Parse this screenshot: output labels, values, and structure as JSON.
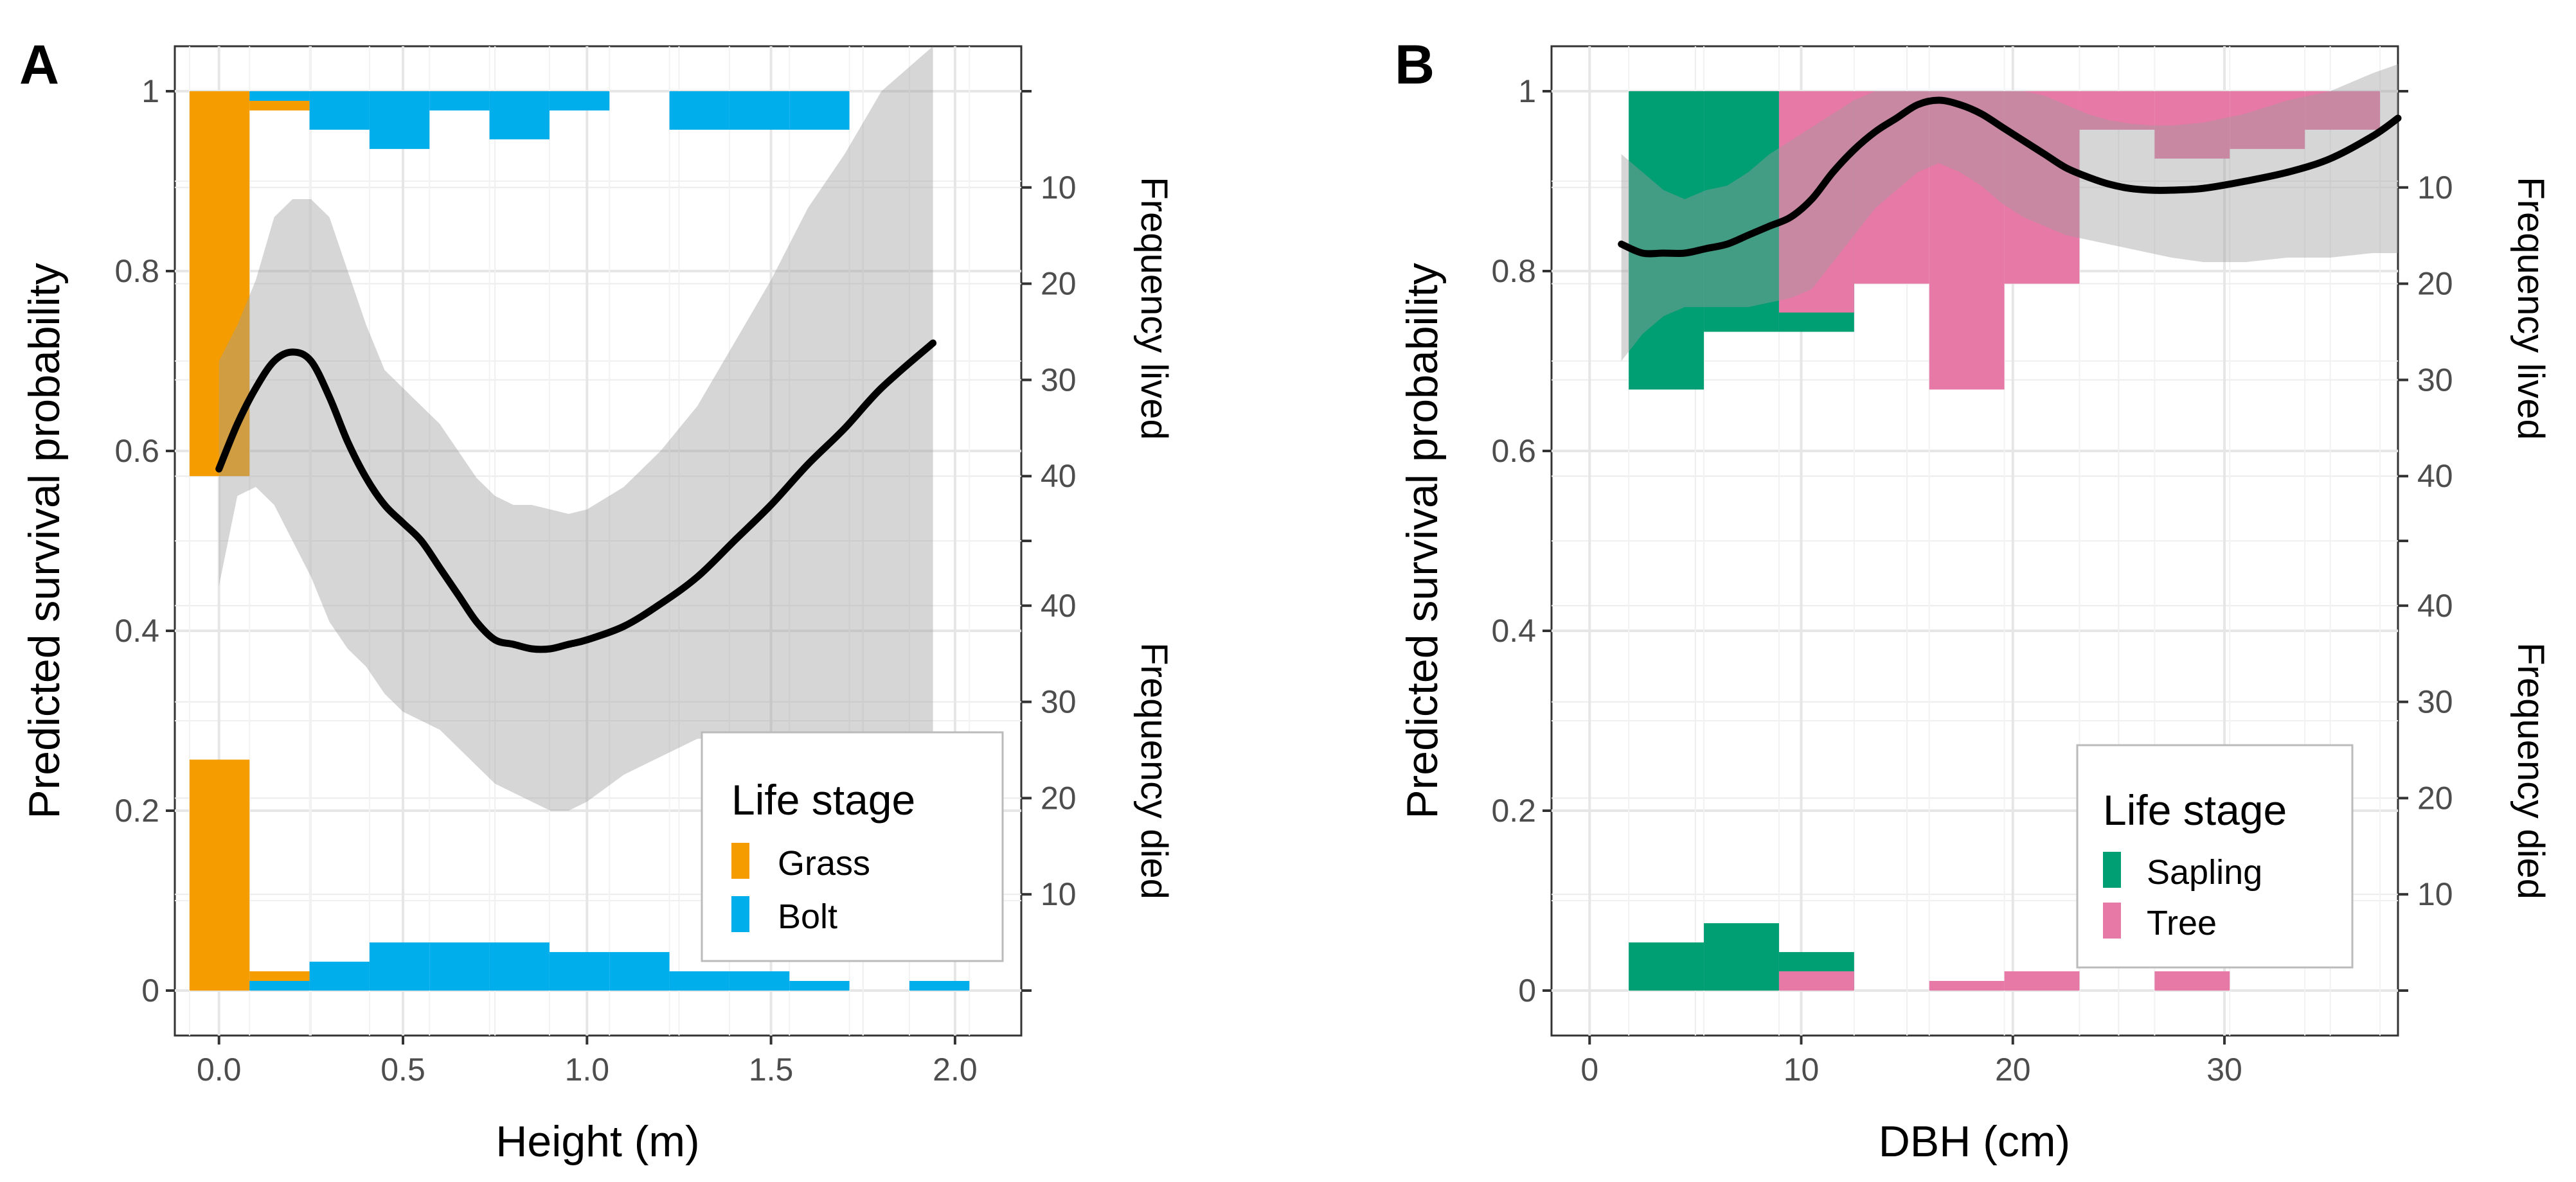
{
  "chart_data": [
    {
      "type": "histogram + logistic fit",
      "panel_label": "A",
      "xlabel": "Height (m)",
      "ylabel": "Predicted survival probability",
      "ylabel_right_top": "Frequency lived",
      "ylabel_right_bottom": "Frequency died",
      "xlim": [
        -0.12,
        2.18
      ],
      "ylim": [
        -0.05,
        1.05
      ],
      "xticks": [
        0.0,
        0.5,
        1.0,
        1.5,
        2.0
      ],
      "xtick_labels": [
        "0.0",
        "0.5",
        "1.0",
        "1.5",
        "2.0"
      ],
      "yticks": [
        0,
        0.2,
        0.4,
        0.6,
        0.8,
        1
      ],
      "ytick_labels": [
        "0",
        "0.2",
        "0.4",
        "0.6",
        "0.8",
        "1"
      ],
      "freq_scale": 0.0107,
      "right_ticks_lived": [
        10,
        20,
        30,
        40
      ],
      "right_ticks_died": [
        10,
        20,
        30,
        40
      ],
      "right_tick_labels_lived": [
        "10",
        "20",
        "30",
        "40"
      ],
      "right_tick_labels_died": [
        "10",
        "20",
        "30",
        "40"
      ],
      "grid": true,
      "legend": {
        "title": "Life stage",
        "position": "bottom-right",
        "items": [
          {
            "label": "Grass",
            "color": "#F59D00"
          },
          {
            "label": "Bolt",
            "color": "#00AEEB"
          }
        ]
      },
      "bin_width": 0.163,
      "series": [
        {
          "name": "Grass",
          "color": "#F59D00",
          "bin_starts": [
            -0.08,
            0.083
          ],
          "lived": [
            40,
            2
          ],
          "died": [
            24,
            2
          ]
        },
        {
          "name": "Bolt",
          "color": "#00AEEB",
          "bin_starts": [
            0.083,
            0.246,
            0.409,
            0.572,
            0.735,
            0.898,
            1.061,
            1.224,
            1.387,
            1.55,
            1.713,
            1.876
          ],
          "lived": [
            1,
            4,
            6,
            2,
            5,
            2,
            0,
            4,
            4,
            4,
            0,
            0
          ],
          "died": [
            1,
            3,
            5,
            5,
            5,
            4,
            4,
            2,
            2,
            1,
            0,
            1
          ]
        }
      ],
      "fit": {
        "x": [
          0.0,
          0.05,
          0.1,
          0.15,
          0.2,
          0.25,
          0.3,
          0.35,
          0.4,
          0.45,
          0.5,
          0.55,
          0.6,
          0.65,
          0.7,
          0.75,
          0.8,
          0.85,
          0.9,
          0.95,
          1.0,
          1.1,
          1.2,
          1.3,
          1.4,
          1.5,
          1.6,
          1.7,
          1.8,
          1.94
        ],
        "y": [
          0.58,
          0.63,
          0.67,
          0.7,
          0.71,
          0.7,
          0.66,
          0.61,
          0.57,
          0.54,
          0.52,
          0.5,
          0.47,
          0.44,
          0.41,
          0.39,
          0.385,
          0.38,
          0.38,
          0.385,
          0.39,
          0.405,
          0.43,
          0.46,
          0.5,
          0.54,
          0.585,
          0.625,
          0.67,
          0.72
        ],
        "lower": [
          0.45,
          0.55,
          0.56,
          0.54,
          0.5,
          0.46,
          0.41,
          0.38,
          0.36,
          0.33,
          0.31,
          0.3,
          0.29,
          0.27,
          0.25,
          0.23,
          0.22,
          0.21,
          0.2,
          0.2,
          0.21,
          0.24,
          0.26,
          0.28,
          0.28,
          0.28,
          0.27,
          0.26,
          0.26,
          0.25
        ],
        "upper": [
          0.7,
          0.74,
          0.79,
          0.86,
          0.88,
          0.88,
          0.86,
          0.8,
          0.74,
          0.69,
          0.67,
          0.65,
          0.63,
          0.6,
          0.57,
          0.55,
          0.54,
          0.54,
          0.535,
          0.53,
          0.535,
          0.56,
          0.6,
          0.65,
          0.72,
          0.79,
          0.87,
          0.93,
          1.0,
          1.05
        ]
      }
    },
    {
      "type": "histogram + logistic fit",
      "panel_label": "B",
      "xlabel": "DBH (cm)",
      "ylabel": "Predicted survival probability",
      "ylabel_right_top": "Frequency lived",
      "ylabel_right_bottom": "Frequency died",
      "xlim": [
        -1.8,
        38.2
      ],
      "ylim": [
        -0.05,
        1.05
      ],
      "xticks": [
        0,
        10,
        20,
        30
      ],
      "xtick_labels": [
        "0",
        "10",
        "20",
        "30"
      ],
      "yticks": [
        0,
        0.2,
        0.4,
        0.6,
        0.8,
        1
      ],
      "ytick_labels": [
        "0",
        "0.2",
        "0.4",
        "0.6",
        "0.8",
        "1"
      ],
      "freq_scale": 0.0107,
      "right_ticks_lived": [
        10,
        20,
        30,
        40
      ],
      "right_ticks_died": [
        10,
        20,
        30,
        40
      ],
      "right_tick_labels_lived": [
        "10",
        "20",
        "30",
        "40"
      ],
      "right_tick_labels_died": [
        "10",
        "20",
        "30",
        "40"
      ],
      "grid": true,
      "legend": {
        "title": "Life stage",
        "position": "bottom-right",
        "items": [
          {
            "label": "Sapling",
            "color": "#009E73"
          },
          {
            "label": "Tree",
            "color": "#E779A6"
          }
        ]
      },
      "bin_width": 3.55,
      "series": [
        {
          "name": "Sapling",
          "color": "#009E73",
          "bin_starts": [
            1.85,
            5.4,
            8.95
          ],
          "lived": [
            31,
            25,
            25
          ],
          "died": [
            5,
            7,
            4
          ]
        },
        {
          "name": "Tree",
          "color": "#E779A6",
          "bin_starts": [
            8.95,
            12.5,
            16.05,
            19.6,
            23.15,
            26.7,
            30.25,
            33.8
          ],
          "lived": [
            23,
            20,
            31,
            20,
            4,
            7,
            6,
            4
          ],
          "died": [
            2,
            0,
            1,
            2,
            0,
            2,
            0,
            0
          ]
        }
      ],
      "fit": {
        "x": [
          1.5,
          2.5,
          3.5,
          4.5,
          5.5,
          6.5,
          7.5,
          8.5,
          9.5,
          10.5,
          11.5,
          12.5,
          13.5,
          14.5,
          15.5,
          16.5,
          17.5,
          18.5,
          19.5,
          20.5,
          21.5,
          22.5,
          23.5,
          24.5,
          25.5,
          26.5,
          27.5,
          29,
          31,
          33,
          35,
          37,
          38.2
        ],
        "y": [
          0.83,
          0.82,
          0.82,
          0.82,
          0.825,
          0.83,
          0.84,
          0.85,
          0.86,
          0.88,
          0.91,
          0.935,
          0.955,
          0.97,
          0.985,
          0.99,
          0.985,
          0.975,
          0.96,
          0.945,
          0.93,
          0.915,
          0.905,
          0.897,
          0.892,
          0.89,
          0.89,
          0.892,
          0.9,
          0.91,
          0.925,
          0.95,
          0.97
        ],
        "lower": [
          0.7,
          0.73,
          0.75,
          0.76,
          0.76,
          0.76,
          0.76,
          0.765,
          0.77,
          0.78,
          0.81,
          0.84,
          0.87,
          0.89,
          0.91,
          0.92,
          0.91,
          0.895,
          0.875,
          0.86,
          0.85,
          0.84,
          0.835,
          0.83,
          0.825,
          0.82,
          0.815,
          0.81,
          0.81,
          0.815,
          0.815,
          0.82,
          0.82
        ],
        "upper": [
          0.93,
          0.91,
          0.89,
          0.88,
          0.89,
          0.895,
          0.91,
          0.93,
          0.945,
          0.96,
          0.975,
          0.99,
          1.0,
          1.0,
          1.0,
          1.0,
          1.0,
          1.0,
          1.0,
          1.0,
          0.995,
          0.985,
          0.975,
          0.968,
          0.964,
          0.962,
          0.962,
          0.965,
          0.975,
          0.99,
          1.0,
          1.02,
          1.03
        ]
      }
    }
  ]
}
